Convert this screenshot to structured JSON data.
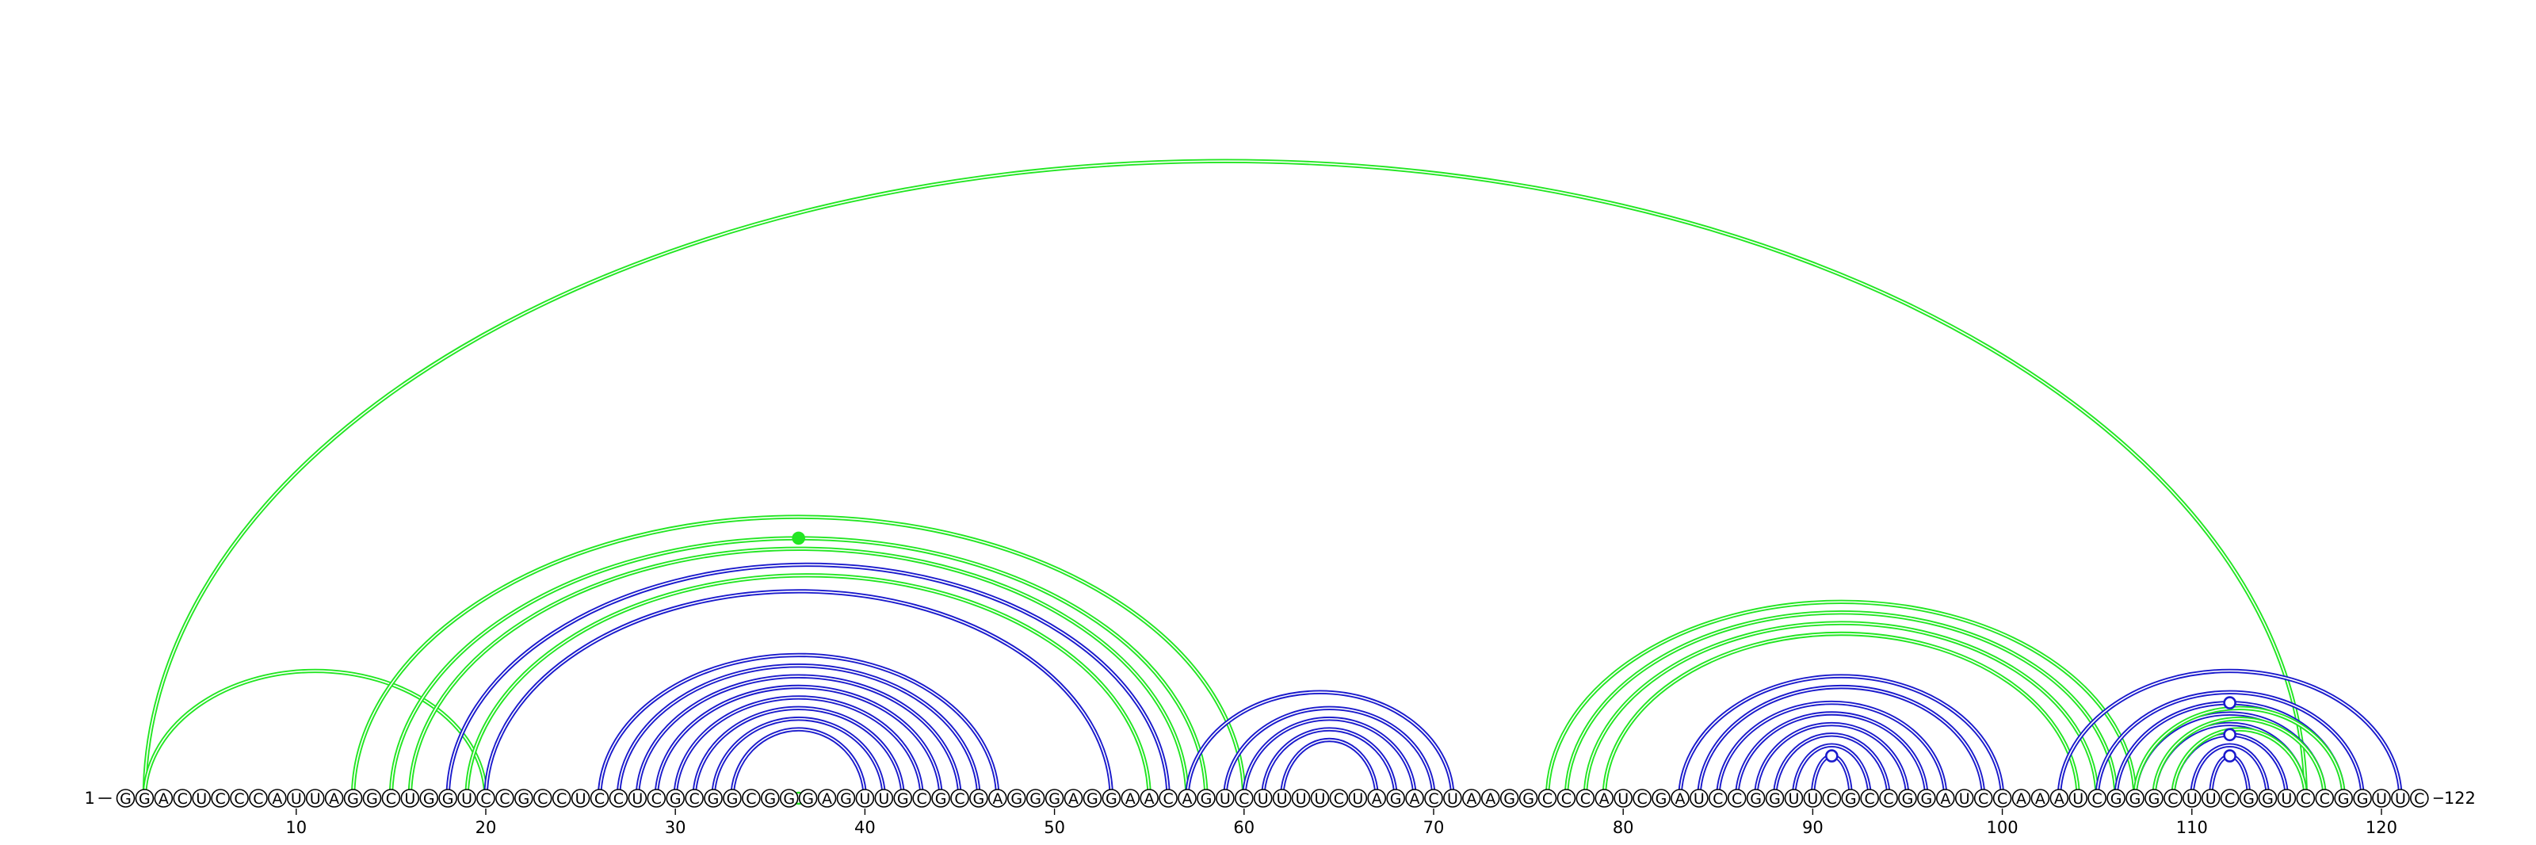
{
  "diagram": {
    "sequence": "GGACUCCCAUUAGGCUGGUCCGCCUCCUCGCGGCGGGAGUUGCGCGAGGGAGGAACAGUCUUUUCUAGACUAAGGCCCAUCGAUCCGGUUCGCCGGAUCCAAAUCGGGCUUCGGUCCGGUUC",
    "start_label": "1",
    "end_label": "122",
    "ticks": [
      10,
      20,
      30,
      40,
      50,
      60,
      70,
      80,
      90,
      100,
      110,
      120
    ],
    "colors": {
      "green": "#22e622",
      "blue": "#1a1acc"
    },
    "arcs": [
      {
        "i": 2,
        "j": 116,
        "color": "green"
      },
      {
        "i": 2,
        "j": 20,
        "color": "green"
      },
      {
        "i": 13,
        "j": 60,
        "color": "green"
      },
      {
        "i": 15,
        "j": 58,
        "color": "green"
      },
      {
        "i": 16,
        "j": 57,
        "color": "green"
      },
      {
        "i": 18,
        "j": 56,
        "color": "blue"
      },
      {
        "i": 19,
        "j": 55,
        "color": "green"
      },
      {
        "i": 20,
        "j": 53,
        "color": "blue"
      },
      {
        "i": 26,
        "j": 47,
        "color": "blue"
      },
      {
        "i": 27,
        "j": 46,
        "color": "blue"
      },
      {
        "i": 28,
        "j": 45,
        "color": "blue"
      },
      {
        "i": 29,
        "j": 44,
        "color": "blue"
      },
      {
        "i": 30,
        "j": 43,
        "color": "blue"
      },
      {
        "i": 31,
        "j": 42,
        "color": "blue"
      },
      {
        "i": 32,
        "j": 41,
        "color": "blue"
      },
      {
        "i": 33,
        "j": 40,
        "color": "blue"
      },
      {
        "i": 57,
        "j": 71,
        "color": "blue"
      },
      {
        "i": 59,
        "j": 70,
        "color": "blue"
      },
      {
        "i": 60,
        "j": 69,
        "color": "blue"
      },
      {
        "i": 61,
        "j": 68,
        "color": "blue"
      },
      {
        "i": 62,
        "j": 67,
        "color": "blue"
      },
      {
        "i": 76,
        "j": 107,
        "color": "green"
      },
      {
        "i": 77,
        "j": 106,
        "color": "green"
      },
      {
        "i": 78,
        "j": 105,
        "color": "green"
      },
      {
        "i": 79,
        "j": 104,
        "color": "green"
      },
      {
        "i": 83,
        "j": 100,
        "color": "blue"
      },
      {
        "i": 84,
        "j": 99,
        "color": "blue"
      },
      {
        "i": 85,
        "j": 97,
        "color": "blue"
      },
      {
        "i": 86,
        "j": 96,
        "color": "blue"
      },
      {
        "i": 87,
        "j": 95,
        "color": "blue"
      },
      {
        "i": 88,
        "j": 94,
        "color": "blue"
      },
      {
        "i": 89,
        "j": 93,
        "color": "blue"
      },
      {
        "i": 90,
        "j": 92,
        "color": "blue"
      },
      {
        "i": 103,
        "j": 121,
        "color": "blue"
      },
      {
        "i": 105,
        "j": 119,
        "color": "blue"
      },
      {
        "i": 106,
        "j": 118,
        "color": "blue"
      },
      {
        "i": 107,
        "j": 117,
        "color": "blue"
      },
      {
        "i": 108,
        "j": 116,
        "color": "blue"
      },
      {
        "i": 109,
        "j": 115,
        "color": "blue"
      },
      {
        "i": 110,
        "j": 114,
        "color": "blue"
      },
      {
        "i": 111,
        "j": 113,
        "color": "blue"
      },
      {
        "i": 107,
        "j": 118,
        "color": "green"
      },
      {
        "i": 108,
        "j": 117,
        "color": "green"
      },
      {
        "i": 109,
        "j": 116,
        "color": "green"
      }
    ],
    "markers": [
      {
        "position": 36.5,
        "on_arc": 1,
        "color": "green",
        "filled": false
      },
      {
        "position": 36.5,
        "on_arc": 3,
        "color": "green",
        "filled": true
      },
      {
        "position": 91,
        "on_arc": 32,
        "color": "blue",
        "filled": false
      },
      {
        "position": 112,
        "on_arc": 35,
        "color": "blue",
        "filled": false
      },
      {
        "position": 112,
        "on_arc": 38,
        "color": "blue",
        "filled": false
      },
      {
        "position": 112,
        "on_arc": 40,
        "color": "blue",
        "filled": false
      }
    ]
  }
}
